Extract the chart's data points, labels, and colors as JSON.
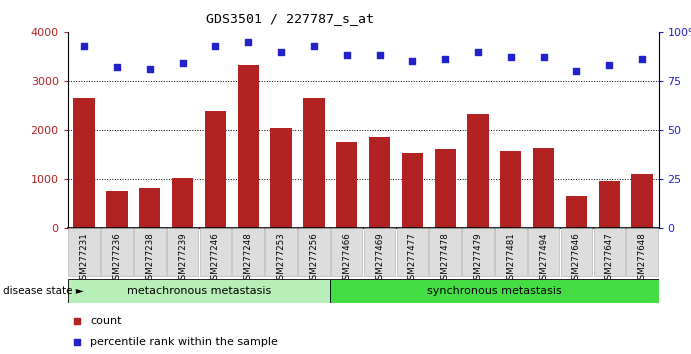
{
  "title": "GDS3501 / 227787_s_at",
  "samples": [
    "GSM277231",
    "GSM277236",
    "GSM277238",
    "GSM277239",
    "GSM277246",
    "GSM277248",
    "GSM277253",
    "GSM277256",
    "GSM277466",
    "GSM277469",
    "GSM277477",
    "GSM277478",
    "GSM277479",
    "GSM277481",
    "GSM277494",
    "GSM277646",
    "GSM277647",
    "GSM277648"
  ],
  "counts": [
    2650,
    750,
    820,
    1020,
    2380,
    3330,
    2050,
    2660,
    1750,
    1850,
    1530,
    1610,
    2330,
    1570,
    1630,
    650,
    960,
    1110
  ],
  "percentiles": [
    93,
    82,
    81,
    84,
    93,
    95,
    90,
    93,
    88,
    88,
    85,
    86,
    90,
    87,
    87,
    80,
    83,
    86
  ],
  "group1_label": "metachronous metastasis",
  "group2_label": "synchronous metastasis",
  "group1_count": 8,
  "group2_count": 10,
  "bar_color": "#B22222",
  "dot_color": "#2222CC",
  "group1_bg": "#B8EEB8",
  "group2_bg": "#44DD44",
  "bg_color": "#FFFFFF",
  "ylim_left": [
    0,
    4000
  ],
  "ylim_right": [
    0,
    100
  ],
  "yticks_left": [
    0,
    1000,
    2000,
    3000,
    4000
  ],
  "yticks_right": [
    0,
    25,
    50,
    75,
    100
  ],
  "legend_count_label": "count",
  "legend_pct_label": "percentile rank within the sample"
}
